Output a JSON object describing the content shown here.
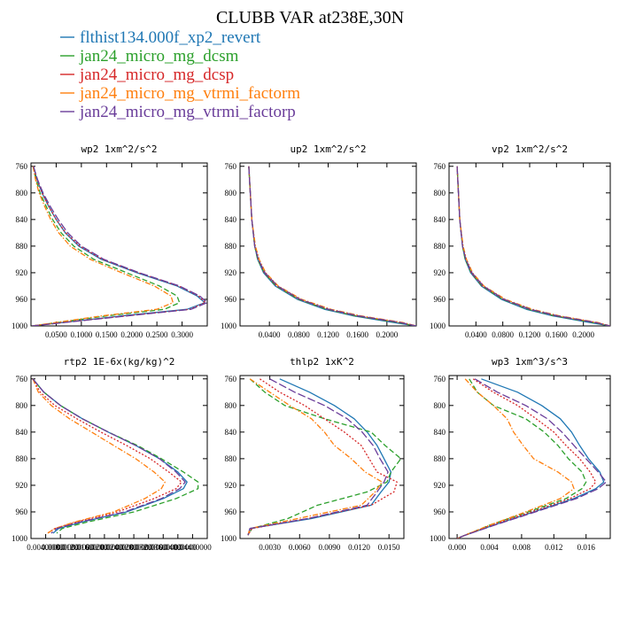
{
  "figure": {
    "title": "CLUBB VAR at238E,30N"
  },
  "legend": [
    {
      "name": "flthist134.000f_xp2_revert",
      "color": "#1f77b4",
      "dash": "solid"
    },
    {
      "name": "jan24_micro_mg_dcsm",
      "color": "#2ca02c",
      "dash": "dashed"
    },
    {
      "name": "jan24_micro_mg_dcsp",
      "color": "#d62728",
      "dash": "dotted"
    },
    {
      "name": "jan24_micro_mg_vtrmi_factorm",
      "color": "#ff7f0e",
      "dash": "dashdot"
    },
    {
      "name": "jan24_micro_mg_vtrmi_factorp",
      "color": "#6a3d9a",
      "dash": "longdash"
    }
  ],
  "chart_data": [
    {
      "type": "line",
      "title": "wp2  1xm^2/s^2",
      "xlim": [
        0.0,
        0.35
      ],
      "ylim": [
        1000,
        755
      ],
      "xticks": [
        0.05,
        0.1,
        0.15,
        0.2,
        0.25,
        0.3
      ],
      "xtick_labels": [
        "0.0500",
        "0.1000",
        "0.1500",
        "0.2000",
        "0.2500",
        "0.3000"
      ],
      "yticks": [
        760,
        800,
        840,
        880,
        920,
        960,
        1000
      ],
      "ytick_labels": [
        "760",
        "800",
        "840",
        "880",
        "920",
        "960",
        "1000"
      ],
      "y": [
        760,
        780,
        800,
        820,
        840,
        860,
        880,
        900,
        920,
        940,
        955,
        965,
        975,
        985,
        1000
      ],
      "series": [
        {
          "name": "flthist134.000f_xp2_revert",
          "values": [
            0.005,
            0.012,
            0.022,
            0.035,
            0.05,
            0.068,
            0.095,
            0.14,
            0.21,
            0.29,
            0.33,
            0.345,
            0.31,
            0.18,
            0.002
          ]
        },
        {
          "name": "jan24_micro_mg_dcsm",
          "values": [
            0.004,
            0.01,
            0.018,
            0.03,
            0.043,
            0.06,
            0.085,
            0.125,
            0.19,
            0.255,
            0.29,
            0.295,
            0.265,
            0.15,
            0.002
          ]
        },
        {
          "name": "jan24_micro_mg_dcsp",
          "values": [
            0.005,
            0.012,
            0.022,
            0.035,
            0.05,
            0.069,
            0.097,
            0.142,
            0.213,
            0.293,
            0.333,
            0.346,
            0.315,
            0.185,
            0.002
          ]
        },
        {
          "name": "jan24_micro_mg_vtrmi_factorm",
          "values": [
            0.004,
            0.009,
            0.016,
            0.027,
            0.039,
            0.055,
            0.078,
            0.118,
            0.18,
            0.245,
            0.278,
            0.282,
            0.25,
            0.14,
            0.002
          ]
        },
        {
          "name": "jan24_micro_mg_vtrmi_factorp",
          "values": [
            0.005,
            0.013,
            0.024,
            0.038,
            0.054,
            0.073,
            0.1,
            0.145,
            0.215,
            0.295,
            0.335,
            0.35,
            0.318,
            0.19,
            0.002
          ]
        }
      ]
    },
    {
      "type": "line",
      "title": "up2  1xm^2/s^2",
      "xlim": [
        0.0,
        0.24
      ],
      "ylim": [
        1000,
        755
      ],
      "xticks": [
        0.04,
        0.08,
        0.12,
        0.16,
        0.2
      ],
      "xtick_labels": [
        "0.0400",
        "0.0800",
        "0.1200",
        "0.1600",
        "0.2000"
      ],
      "yticks": [
        760,
        800,
        840,
        880,
        920,
        960,
        1000
      ],
      "ytick_labels": [
        "760",
        "800",
        "840",
        "880",
        "920",
        "960",
        "1000"
      ],
      "y": [
        760,
        800,
        840,
        880,
        900,
        920,
        940,
        960,
        975,
        985,
        995,
        1000
      ],
      "series": [
        {
          "name": "flthist134.000f_xp2_revert",
          "values": [
            0.012,
            0.014,
            0.016,
            0.02,
            0.024,
            0.032,
            0.048,
            0.078,
            0.115,
            0.155,
            0.21,
            0.24
          ]
        },
        {
          "name": "jan24_micro_mg_dcsm",
          "values": [
            0.012,
            0.014,
            0.016,
            0.02,
            0.024,
            0.033,
            0.049,
            0.08,
            0.118,
            0.158,
            0.215,
            0.24
          ]
        },
        {
          "name": "jan24_micro_mg_dcsp",
          "values": [
            0.012,
            0.014,
            0.016,
            0.02,
            0.025,
            0.033,
            0.05,
            0.081,
            0.12,
            0.16,
            0.218,
            0.24
          ]
        },
        {
          "name": "jan24_micro_mg_vtrmi_factorm",
          "values": [
            0.012,
            0.014,
            0.016,
            0.021,
            0.026,
            0.035,
            0.052,
            0.084,
            0.124,
            0.165,
            0.222,
            0.24
          ]
        },
        {
          "name": "jan24_micro_mg_vtrmi_factorp",
          "values": [
            0.012,
            0.014,
            0.016,
            0.02,
            0.025,
            0.034,
            0.051,
            0.082,
            0.121,
            0.162,
            0.219,
            0.24
          ]
        }
      ]
    },
    {
      "type": "line",
      "title": "vp2  1xm^2/s^2",
      "xlim": [
        0.0,
        0.24
      ],
      "ylim": [
        1000,
        755
      ],
      "xticks": [
        0.04,
        0.08,
        0.12,
        0.16,
        0.2
      ],
      "xtick_labels": [
        "0.0400",
        "0.0800",
        "0.1200",
        "0.1600",
        "0.2000"
      ],
      "yticks": [
        760,
        800,
        840,
        880,
        920,
        960,
        1000
      ],
      "ytick_labels": [
        "760",
        "800",
        "840",
        "880",
        "920",
        "960",
        "1000"
      ],
      "y": [
        760,
        800,
        840,
        880,
        900,
        920,
        940,
        960,
        975,
        985,
        995,
        1000
      ],
      "series": [
        {
          "name": "flthist134.000f_xp2_revert",
          "values": [
            0.012,
            0.014,
            0.016,
            0.02,
            0.024,
            0.032,
            0.048,
            0.078,
            0.115,
            0.155,
            0.21,
            0.24
          ]
        },
        {
          "name": "jan24_micro_mg_dcsm",
          "values": [
            0.012,
            0.014,
            0.016,
            0.02,
            0.024,
            0.033,
            0.049,
            0.08,
            0.118,
            0.158,
            0.215,
            0.24
          ]
        },
        {
          "name": "jan24_micro_mg_dcsp",
          "values": [
            0.012,
            0.014,
            0.016,
            0.02,
            0.025,
            0.033,
            0.05,
            0.081,
            0.12,
            0.16,
            0.218,
            0.24
          ]
        },
        {
          "name": "jan24_micro_mg_vtrmi_factorm",
          "values": [
            0.012,
            0.014,
            0.016,
            0.021,
            0.026,
            0.035,
            0.052,
            0.084,
            0.124,
            0.165,
            0.222,
            0.24
          ]
        },
        {
          "name": "jan24_micro_mg_vtrmi_factorp",
          "values": [
            0.012,
            0.014,
            0.016,
            0.02,
            0.025,
            0.034,
            0.051,
            0.082,
            0.121,
            0.162,
            0.219,
            0.24
          ]
        }
      ]
    },
    {
      "type": "line",
      "title": "rtp2  1E-6x(kg/kg)^2",
      "xlim": [
        0.0,
        4.8e-05
      ],
      "ylim": [
        1000,
        755
      ],
      "xticks": [
        4e-06,
        8e-06,
        1.2e-05,
        1.6e-05,
        2e-05,
        2.4e-05,
        2.8e-05,
        3.2e-05,
        3.6e-05,
        4e-05,
        4.4e-05
      ],
      "xtick_labels": [
        "0.00400000",
        "0.00800000",
        "0.01200000",
        "0.01600000",
        "0.02000000",
        "0.02400000",
        "0.02800000",
        "0.03200000",
        "0.03600000",
        "0.04000000",
        "0.04400000"
      ],
      "yticks": [
        760,
        800,
        840,
        880,
        920,
        960,
        1000
      ],
      "ytick_labels": [
        "760",
        "800",
        "840",
        "880",
        "920",
        "960",
        "1000"
      ],
      "y": [
        760,
        780,
        800,
        820,
        840,
        860,
        880,
        900,
        915,
        925,
        940,
        960,
        975,
        985,
        992
      ],
      "series": [
        {
          "name": "flthist134.000f_xp2_revert",
          "values": [
            5e-07,
            3.5e-06,
            8e-06,
            1.4e-05,
            2.1e-05,
            2.85e-05,
            3.5e-05,
            4e-05,
            4.25e-05,
            4.15e-05,
            3.6e-05,
            2.6e-05,
            1.4e-05,
            7.5e-06,
            6e-06
          ]
        },
        {
          "name": "jan24_micro_mg_dcsm",
          "values": [
            5e-07,
            3.5e-06,
            8e-06,
            1.4e-05,
            2.1e-05,
            2.9e-05,
            3.55e-05,
            4.15e-05,
            4.55e-05,
            4.55e-05,
            3.95e-05,
            2.8e-05,
            1.55e-05,
            8.5e-06,
            7e-06
          ]
        },
        {
          "name": "jan24_micro_mg_dcsp",
          "values": [
            5e-07,
            2.5e-06,
            6.5e-06,
            1.25e-05,
            1.9e-05,
            2.6e-05,
            3.25e-05,
            3.75e-05,
            4.1e-05,
            3.95e-05,
            3.35e-05,
            2.35e-05,
            1.25e-05,
            6.5e-06,
            4.5e-06
          ]
        },
        {
          "name": "jan24_micro_mg_vtrmi_factorm",
          "values": [
            5e-07,
            2e-06,
            5.5e-06,
            1.05e-05,
            1.65e-05,
            2.25e-05,
            2.85e-05,
            3.35e-05,
            3.65e-05,
            3.55e-05,
            3.1e-05,
            2.25e-05,
            1.2e-05,
            6.5e-06,
            4.5e-06
          ]
        },
        {
          "name": "jan24_micro_mg_vtrmi_factorp",
          "values": [
            5e-07,
            3.5e-06,
            8e-06,
            1.4e-05,
            2.1e-05,
            2.85e-05,
            3.5e-05,
            3.95e-05,
            4.2e-05,
            4.05e-05,
            3.55e-05,
            2.55e-05,
            1.35e-05,
            7e-06,
            5.5e-06
          ]
        }
      ]
    },
    {
      "type": "line",
      "title": "thlp2  1xK^2",
      "xlim": [
        0.0,
        0.0165
      ],
      "ylim": [
        1000,
        755
      ],
      "xticks": [
        0.003,
        0.006,
        0.009,
        0.012,
        0.015
      ],
      "xtick_labels": [
        "0.0030",
        "0.0060",
        "0.0090",
        "0.0120",
        "0.0150"
      ],
      "yticks": [
        760,
        800,
        840,
        880,
        920,
        960,
        1000
      ],
      "ytick_labels": [
        "760",
        "800",
        "840",
        "880",
        "920",
        "960",
        "1000"
      ],
      "y": [
        760,
        780,
        800,
        820,
        840,
        860,
        880,
        900,
        915,
        930,
        950,
        970,
        985,
        995
      ],
      "series": [
        {
          "name": "flthist134.000f_xp2_revert",
          "values": [
            0.004,
            0.007,
            0.0095,
            0.0115,
            0.0128,
            0.0138,
            0.0145,
            0.0152,
            0.015,
            0.0142,
            0.0132,
            0.0072,
            0.001,
            0.0008
          ]
        },
        {
          "name": "jan24_micro_mg_dcsm",
          "values": [
            0.001,
            0.0025,
            0.0045,
            0.0085,
            0.0132,
            0.0146,
            0.0162,
            0.0152,
            0.0148,
            0.0128,
            0.0078,
            0.0048,
            0.0012,
            0.0008
          ]
        },
        {
          "name": "jan24_micro_mg_dcsp",
          "values": [
            0.002,
            0.004,
            0.0065,
            0.0085,
            0.0105,
            0.0122,
            0.013,
            0.0138,
            0.0158,
            0.0155,
            0.0132,
            0.0068,
            0.0012,
            0.0008
          ]
        },
        {
          "name": "jan24_micro_mg_vtrmi_factorm",
          "values": [
            0.001,
            0.003,
            0.005,
            0.0072,
            0.0085,
            0.0095,
            0.0112,
            0.0126,
            0.0143,
            0.0136,
            0.0122,
            0.0058,
            0.001,
            0.0008
          ]
        },
        {
          "name": "jan24_micro_mg_vtrmi_factorp",
          "values": [
            0.003,
            0.0055,
            0.0085,
            0.0108,
            0.0123,
            0.0134,
            0.0141,
            0.0149,
            0.0145,
            0.0138,
            0.0128,
            0.0068,
            0.001,
            0.0008
          ]
        }
      ]
    },
    {
      "type": "line",
      "title": "wp3  1xm^3/s^3",
      "xlim": [
        -0.001,
        0.019
      ],
      "ylim": [
        1000,
        755
      ],
      "xticks": [
        0.0,
        0.004,
        0.008,
        0.012,
        0.016
      ],
      "xtick_labels": [
        "0.000",
        "0.004",
        "0.008",
        "0.012",
        "0.016"
      ],
      "yticks": [
        760,
        800,
        840,
        880,
        920,
        960,
        1000
      ],
      "ytick_labels": [
        "760",
        "800",
        "840",
        "880",
        "920",
        "960",
        "1000"
      ],
      "y": [
        760,
        780,
        800,
        820,
        840,
        860,
        880,
        900,
        915,
        925,
        940,
        960,
        980,
        995,
        1000
      ],
      "series": [
        {
          "name": "flthist134.000f_xp2_revert",
          "values": [
            0.003,
            0.0075,
            0.0105,
            0.0128,
            0.0142,
            0.0152,
            0.0163,
            0.0177,
            0.0182,
            0.0172,
            0.0145,
            0.0095,
            0.0045,
            0.001,
            0.0
          ]
        },
        {
          "name": "jan24_micro_mg_dcsm",
          "values": [
            0.0015,
            0.0025,
            0.0045,
            0.0085,
            0.0108,
            0.0125,
            0.0138,
            0.0155,
            0.016,
            0.0155,
            0.0135,
            0.0088,
            0.004,
            0.001,
            0.0
          ]
        },
        {
          "name": "jan24_micro_mg_dcsp",
          "values": [
            0.002,
            0.0045,
            0.0075,
            0.0098,
            0.012,
            0.0135,
            0.0152,
            0.0165,
            0.0172,
            0.0165,
            0.014,
            0.0092,
            0.0042,
            0.001,
            0.0
          ]
        },
        {
          "name": "jan24_micro_mg_vtrmi_factorm",
          "values": [
            0.001,
            0.0025,
            0.0045,
            0.0062,
            0.007,
            0.0082,
            0.0095,
            0.0125,
            0.0142,
            0.0145,
            0.0128,
            0.0085,
            0.004,
            0.001,
            0.0
          ]
        },
        {
          "name": "jan24_micro_mg_vtrmi_factorp",
          "values": [
            0.0022,
            0.005,
            0.0085,
            0.0112,
            0.013,
            0.0145,
            0.016,
            0.0175,
            0.0185,
            0.0175,
            0.0148,
            0.0097,
            0.0046,
            0.001,
            0.0
          ]
        }
      ]
    }
  ]
}
